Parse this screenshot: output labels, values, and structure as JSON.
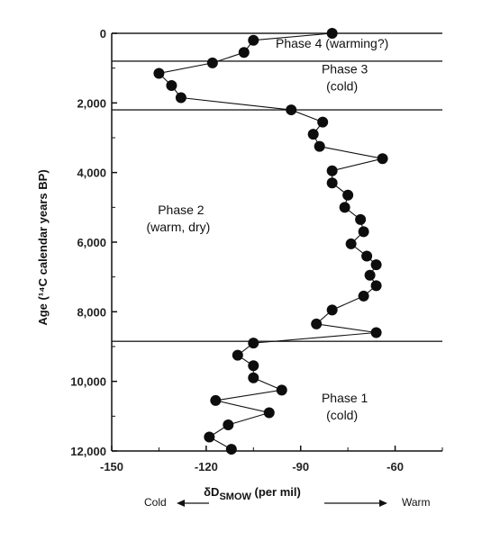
{
  "chart_data": {
    "type": "line",
    "xlabel": "δD",
    "xlabel_subscript": "SMOW",
    "xlabel_suffix": " (per mil)",
    "ylabel": "Age (¹⁴C calendar years BP)",
    "xlim": [
      -150,
      -45
    ],
    "ylim": [
      0,
      12000
    ],
    "y_inverted": true,
    "x_ticks": [
      -150,
      -120,
      -90,
      -60
    ],
    "x_tick_labels": [
      "-150",
      "-120",
      "-90",
      "-60"
    ],
    "y_ticks": [
      0,
      2000,
      4000,
      6000,
      8000,
      10000,
      12000
    ],
    "y_tick_labels": [
      "0",
      "2,000",
      "4,000",
      "6,000",
      "8,000",
      "10,000",
      "12,000"
    ],
    "grid": false,
    "axis_end_labels": {
      "left": "Cold",
      "right": "Warm"
    },
    "phase_boundaries": [
      800,
      2200,
      8850
    ],
    "phases": [
      {
        "line1": "Phase 4 (warming?)",
        "line2": "",
        "x": -80,
        "y": 420
      },
      {
        "line1": "Phase 3",
        "line2": "(cold)",
        "x": -76,
        "y": 1150
      },
      {
        "line1": "Phase 2",
        "line2": "(warm, dry)",
        "x": -128,
        "y": 5200
      },
      {
        "line1": "Phase 1",
        "line2": "(cold)",
        "x": -76,
        "y": 10600
      }
    ],
    "series": [
      {
        "points": [
          [
            -80,
            0
          ],
          [
            -105,
            200
          ],
          [
            -108,
            550
          ],
          [
            -118,
            850
          ],
          [
            -135,
            1150
          ],
          [
            -131,
            1500
          ],
          [
            -128,
            1850
          ],
          [
            -93,
            2200
          ],
          [
            -83,
            2550
          ],
          [
            -86,
            2900
          ],
          [
            -84,
            3250
          ],
          [
            -64,
            3600
          ],
          [
            -80,
            3950
          ],
          [
            -80,
            4300
          ],
          [
            -75,
            4650
          ],
          [
            -76,
            5000
          ],
          [
            -71,
            5350
          ],
          [
            -70,
            5700
          ],
          [
            -74,
            6050
          ],
          [
            -69,
            6400
          ],
          [
            -66,
            6650
          ],
          [
            -68,
            6950
          ],
          [
            -66,
            7250
          ],
          [
            -70,
            7550
          ],
          [
            -80,
            7950
          ],
          [
            -85,
            8350
          ],
          [
            -66,
            8600
          ],
          [
            -105,
            8900
          ],
          [
            -110,
            9250
          ],
          [
            -105,
            9550
          ],
          [
            -105,
            9900
          ],
          [
            -96,
            10250
          ],
          [
            -117,
            10550
          ],
          [
            -100,
            10900
          ],
          [
            -113,
            11250
          ],
          [
            -119,
            11600
          ],
          [
            -112,
            11950
          ]
        ]
      }
    ]
  }
}
